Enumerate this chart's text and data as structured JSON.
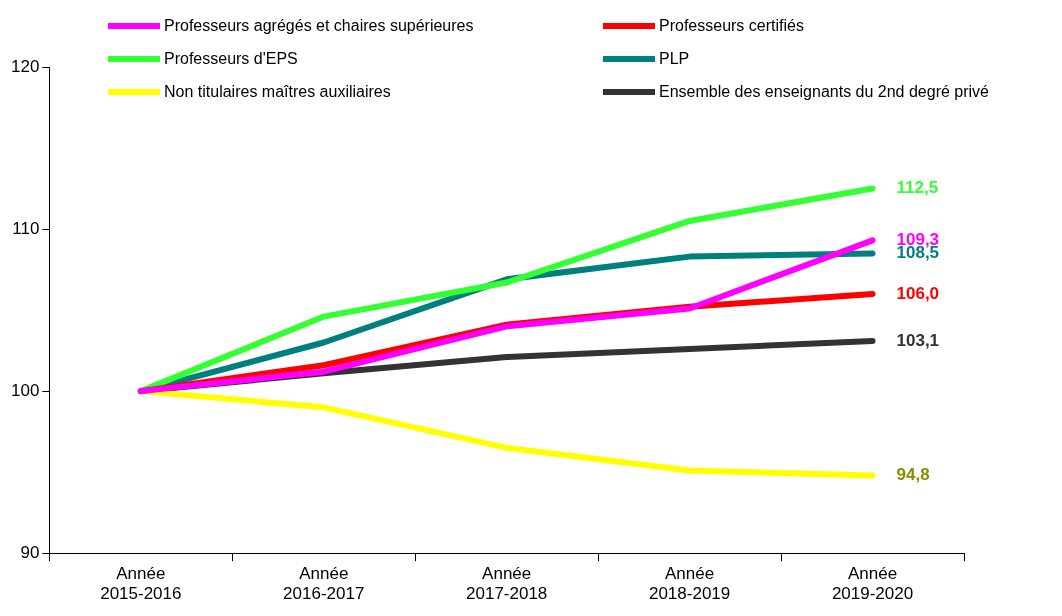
{
  "chart_data": {
    "type": "line",
    "categories": [
      "Année 2015-2016",
      "Année 2016-2017",
      "Année 2017-2018",
      "Année 2018-2019",
      "Année 2019-2020"
    ],
    "series": [
      {
        "name": "Professeurs agrégés et chaires supérieures",
        "color": "#ff00ff",
        "values": [
          100,
          101.2,
          104.0,
          105.1,
          109.3
        ],
        "value_labels": [
          null,
          null,
          null,
          null,
          "109,3"
        ]
      },
      {
        "name": "Professeurs certifiés",
        "color": "#ff0000",
        "values": [
          100,
          101.6,
          104.1,
          105.2,
          106.0
        ],
        "value_labels": [
          null,
          null,
          null,
          null,
          "106,0"
        ]
      },
      {
        "name": "Professeurs d'EPS",
        "color": "#33ff33",
        "values": [
          100,
          104.6,
          106.7,
          110.5,
          112.5
        ],
        "value_labels": [
          null,
          null,
          null,
          null,
          "112,5"
        ]
      },
      {
        "name": "PLP",
        "color": "#007f7f",
        "values": [
          100,
          103.0,
          106.9,
          108.3,
          108.5
        ],
        "value_labels": [
          null,
          null,
          null,
          null,
          "108,5"
        ]
      },
      {
        "name": "Non titulaires maîtres auxiliaires",
        "color": "#ffff00",
        "values": [
          100,
          99.0,
          96.5,
          95.1,
          94.8
        ],
        "value_labels": [
          null,
          null,
          null,
          null,
          "94,8"
        ]
      },
      {
        "name": "Ensemble des enseignants du 2nd degré privé",
        "color": "#333333",
        "values": [
          100,
          101.1,
          102.1,
          102.6,
          103.1
        ],
        "value_labels": [
          null,
          null,
          null,
          null,
          "103,1"
        ]
      }
    ],
    "ylim": [
      90,
      120
    ],
    "yticks": [
      90,
      100,
      110,
      120
    ],
    "grid": false,
    "legend": "top",
    "marker": "none",
    "line_style": "solid"
  }
}
